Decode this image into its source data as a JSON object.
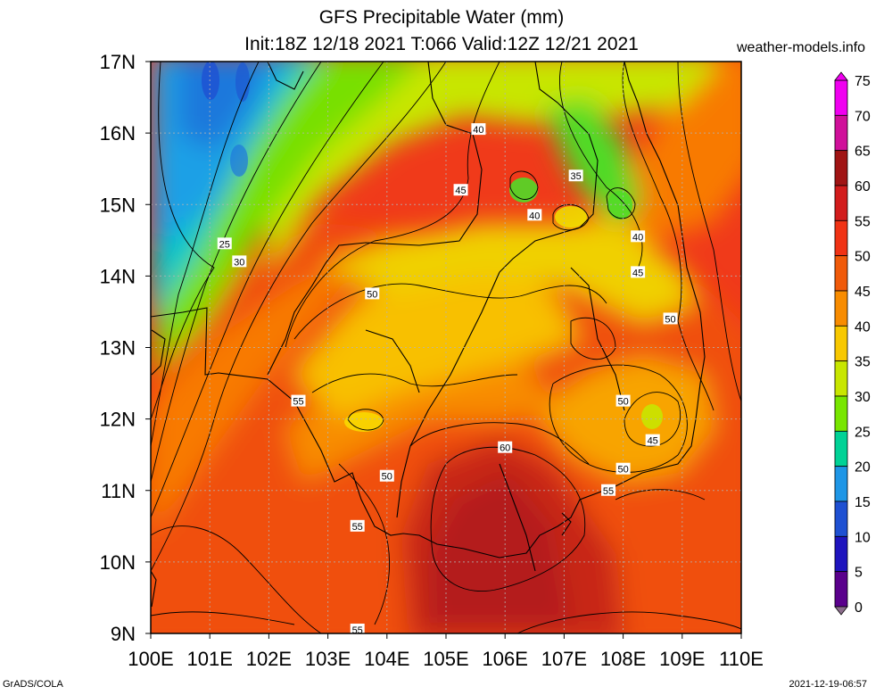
{
  "header": {
    "title": "GFS Precipitable Water (mm)",
    "subtitle": "Init:18Z 12/18 2021 T:066 Valid:12Z 12/21 2021",
    "site": "weather-models.info"
  },
  "footer": {
    "left": "GrADS/COLA",
    "right": "2021-12-19-06:57"
  },
  "map": {
    "lat_labels": [
      "17N",
      "16N",
      "15N",
      "14N",
      "13N",
      "12N",
      "11N",
      "10N",
      "9N"
    ],
    "lon_labels": [
      "100E",
      "101E",
      "102E",
      "103E",
      "104E",
      "105E",
      "106E",
      "107E",
      "108E",
      "109E",
      "110E"
    ],
    "contour_labels": [
      {
        "text": "40",
        "lon": 105.55,
        "lat": 16.05
      },
      {
        "text": "45",
        "lon": 105.25,
        "lat": 15.2
      },
      {
        "text": "35",
        "lon": 107.2,
        "lat": 15.4
      },
      {
        "text": "40",
        "lon": 106.5,
        "lat": 14.85
      },
      {
        "text": "40",
        "lon": 108.25,
        "lat": 14.55
      },
      {
        "text": "45",
        "lon": 108.25,
        "lat": 14.05
      },
      {
        "text": "50",
        "lon": 108.8,
        "lat": 13.4
      },
      {
        "text": "25",
        "lon": 101.25,
        "lat": 14.45
      },
      {
        "text": "30",
        "lon": 101.5,
        "lat": 14.2
      },
      {
        "text": "50",
        "lon": 103.75,
        "lat": 13.75
      },
      {
        "text": "55",
        "lon": 102.5,
        "lat": 12.25
      },
      {
        "text": "50",
        "lon": 108.0,
        "lat": 12.25
      },
      {
        "text": "45",
        "lon": 108.5,
        "lat": 11.7
      },
      {
        "text": "60",
        "lon": 106.0,
        "lat": 11.6
      },
      {
        "text": "50",
        "lon": 108.0,
        "lat": 11.3
      },
      {
        "text": "55",
        "lon": 107.75,
        "lat": 11.0
      },
      {
        "text": "50",
        "lon": 104.0,
        "lat": 11.2
      },
      {
        "text": "55",
        "lon": 103.5,
        "lat": 10.5
      },
      {
        "text": "55",
        "lon": 103.5,
        "lat": 9.05
      }
    ]
  },
  "colorbar": {
    "labels": [
      "75",
      "70",
      "65",
      "60",
      "55",
      "50",
      "45",
      "40",
      "35",
      "30",
      "25",
      "20",
      "15",
      "10",
      "5",
      "0"
    ],
    "colors": [
      "#f000f0",
      "#d0109a",
      "#a01414",
      "#d21c1c",
      "#f03214",
      "#f05a0a",
      "#f88c00",
      "#f8c800",
      "#c8e600",
      "#78e600",
      "#00d296",
      "#1e96e6",
      "#1e50d2",
      "#1e14be",
      "#5a008c",
      "#8c6e8c"
    ]
  }
}
